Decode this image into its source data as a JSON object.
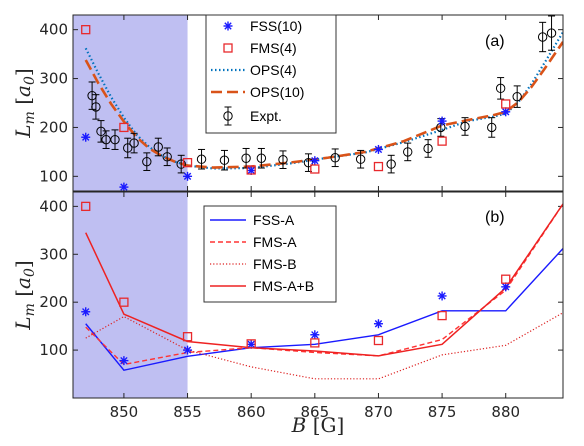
{
  "colors": {
    "shade": "#b4b4f0",
    "FSS": "#1a1aff",
    "FMS": "#e8292c",
    "OPS4": "#0072bd",
    "OPS10": "#d95319",
    "expt": "#000000",
    "FSS_A": "#1a1aff",
    "FMS_A": "#ff3333",
    "FMS_B": "#dd2222",
    "FMS_AB": "#ee2222"
  },
  "chart_data": [
    {
      "type": "scatter",
      "panel_label": "(a)",
      "ylabel": "L_m [a_0]",
      "xlim": [
        846,
        884.5
      ],
      "ylim": [
        70,
        430
      ],
      "xticks": [
        850,
        855,
        860,
        865,
        870,
        875,
        880
      ],
      "yticks": [
        100,
        200,
        300,
        400
      ],
      "shaded_region": [
        846,
        855
      ],
      "series": [
        {
          "name": "FSS(10)",
          "marker": "asterisk",
          "x": [
            847,
            850,
            855,
            860,
            865,
            870,
            875,
            880
          ],
          "y": [
            180,
            78,
            100,
            112,
            132,
            155,
            213,
            232
          ]
        },
        {
          "name": "FMS(4)",
          "marker": "square",
          "x": [
            847,
            850,
            855,
            860,
            865,
            870,
            875,
            880
          ],
          "y": [
            400,
            200,
            128,
            113,
            115,
            120,
            172,
            248
          ]
        },
        {
          "name": "OPS(4)",
          "marker": "dotted-line",
          "x": [
            847,
            848,
            849,
            850,
            851,
            852,
            853,
            854,
            855,
            857,
            860,
            863,
            866,
            869,
            872,
            875,
            877,
            879,
            880,
            881,
            882,
            883,
            884.5
          ],
          "y": [
            362,
            310,
            262,
            220,
            185,
            160,
            142,
            130,
            122,
            116,
            117,
            126,
            138,
            149,
            170,
            195,
            213,
            222,
            228,
            252,
            288,
            330,
            395
          ]
        },
        {
          "name": "OPS(10)",
          "marker": "dashed-line",
          "x": [
            847,
            848,
            849,
            850,
            851,
            852,
            853,
            854,
            855,
            857,
            860,
            863,
            866,
            869,
            872,
            875,
            877,
            879,
            880,
            881,
            882,
            883,
            884.5
          ],
          "y": [
            338,
            290,
            248,
            212,
            180,
            157,
            141,
            130,
            122,
            118,
            120,
            128,
            138,
            150,
            172,
            204,
            215,
            225,
            232,
            252,
            282,
            318,
            375
          ]
        },
        {
          "name": "Expt.",
          "marker": "circle-errorbar",
          "x": [
            847.5,
            847.8,
            848.2,
            848.6,
            849.3,
            850.3,
            850.8,
            851.8,
            852.7,
            853.4,
            854.5,
            856.1,
            857.9,
            859.6,
            860.8,
            862.5,
            864.5,
            866.6,
            868.6,
            871.0,
            872.3,
            873.9,
            874.9,
            876.8,
            878.9,
            879.6,
            880.9,
            882.9,
            883.6
          ],
          "y": [
            265,
            242,
            192,
            175,
            175,
            158,
            168,
            130,
            160,
            140,
            125,
            135,
            133,
            137,
            137,
            134,
            128,
            138,
            135,
            125,
            150,
            157,
            200,
            202,
            200,
            280,
            263,
            385,
            393
          ],
          "err": [
            28,
            25,
            22,
            18,
            20,
            20,
            20,
            18,
            18,
            18,
            18,
            20,
            20,
            20,
            20,
            18,
            18,
            18,
            18,
            18,
            18,
            18,
            18,
            18,
            20,
            22,
            22,
            30,
            35
          ]
        }
      ]
    },
    {
      "type": "line",
      "panel_label": "(b)",
      "xlabel": "B [G]",
      "ylabel": "L_m [a_0]",
      "xlim": [
        846,
        884.5
      ],
      "ylim": [
        0,
        430
      ],
      "xticks": [
        850,
        855,
        860,
        865,
        870,
        875,
        880
      ],
      "yticks": [
        100,
        200,
        300,
        400
      ],
      "shaded_region": [
        846,
        855
      ],
      "points": [
        {
          "name": "FSS",
          "marker": "asterisk",
          "x": [
            847,
            850,
            855,
            860,
            865,
            870,
            875,
            880
          ],
          "y": [
            180,
            78,
            100,
            112,
            132,
            155,
            213,
            232
          ]
        },
        {
          "name": "FMS",
          "marker": "square",
          "x": [
            847,
            850,
            855,
            860,
            865,
            870,
            875,
            880
          ],
          "y": [
            400,
            200,
            128,
            113,
            115,
            120,
            172,
            248
          ]
        }
      ],
      "series": [
        {
          "name": "FSS-A",
          "style": "solid",
          "x": [
            847,
            850,
            855,
            860,
            865,
            870,
            875,
            880,
            884.5
          ],
          "y": [
            155,
            58,
            87,
            105,
            112,
            132,
            182,
            182,
            312
          ]
        },
        {
          "name": "FMS-A",
          "style": "dashed",
          "x": [
            847,
            850,
            855,
            860,
            865,
            870,
            875,
            880,
            884.5
          ],
          "y": [
            148,
            70,
            95,
            105,
            95,
            88,
            122,
            225,
            405
          ]
        },
        {
          "name": "FMS-B",
          "style": "dotted",
          "x": [
            847,
            850,
            855,
            860,
            865,
            870,
            875,
            880,
            884.5
          ],
          "y": [
            125,
            170,
            100,
            65,
            40,
            40,
            90,
            110,
            178
          ]
        },
        {
          "name": "FMS-A+B",
          "style": "solid",
          "x": [
            847,
            850,
            855,
            860,
            865,
            870,
            875,
            880,
            884.5
          ],
          "y": [
            345,
            175,
            118,
            105,
            98,
            88,
            112,
            230,
            405
          ]
        }
      ]
    }
  ]
}
